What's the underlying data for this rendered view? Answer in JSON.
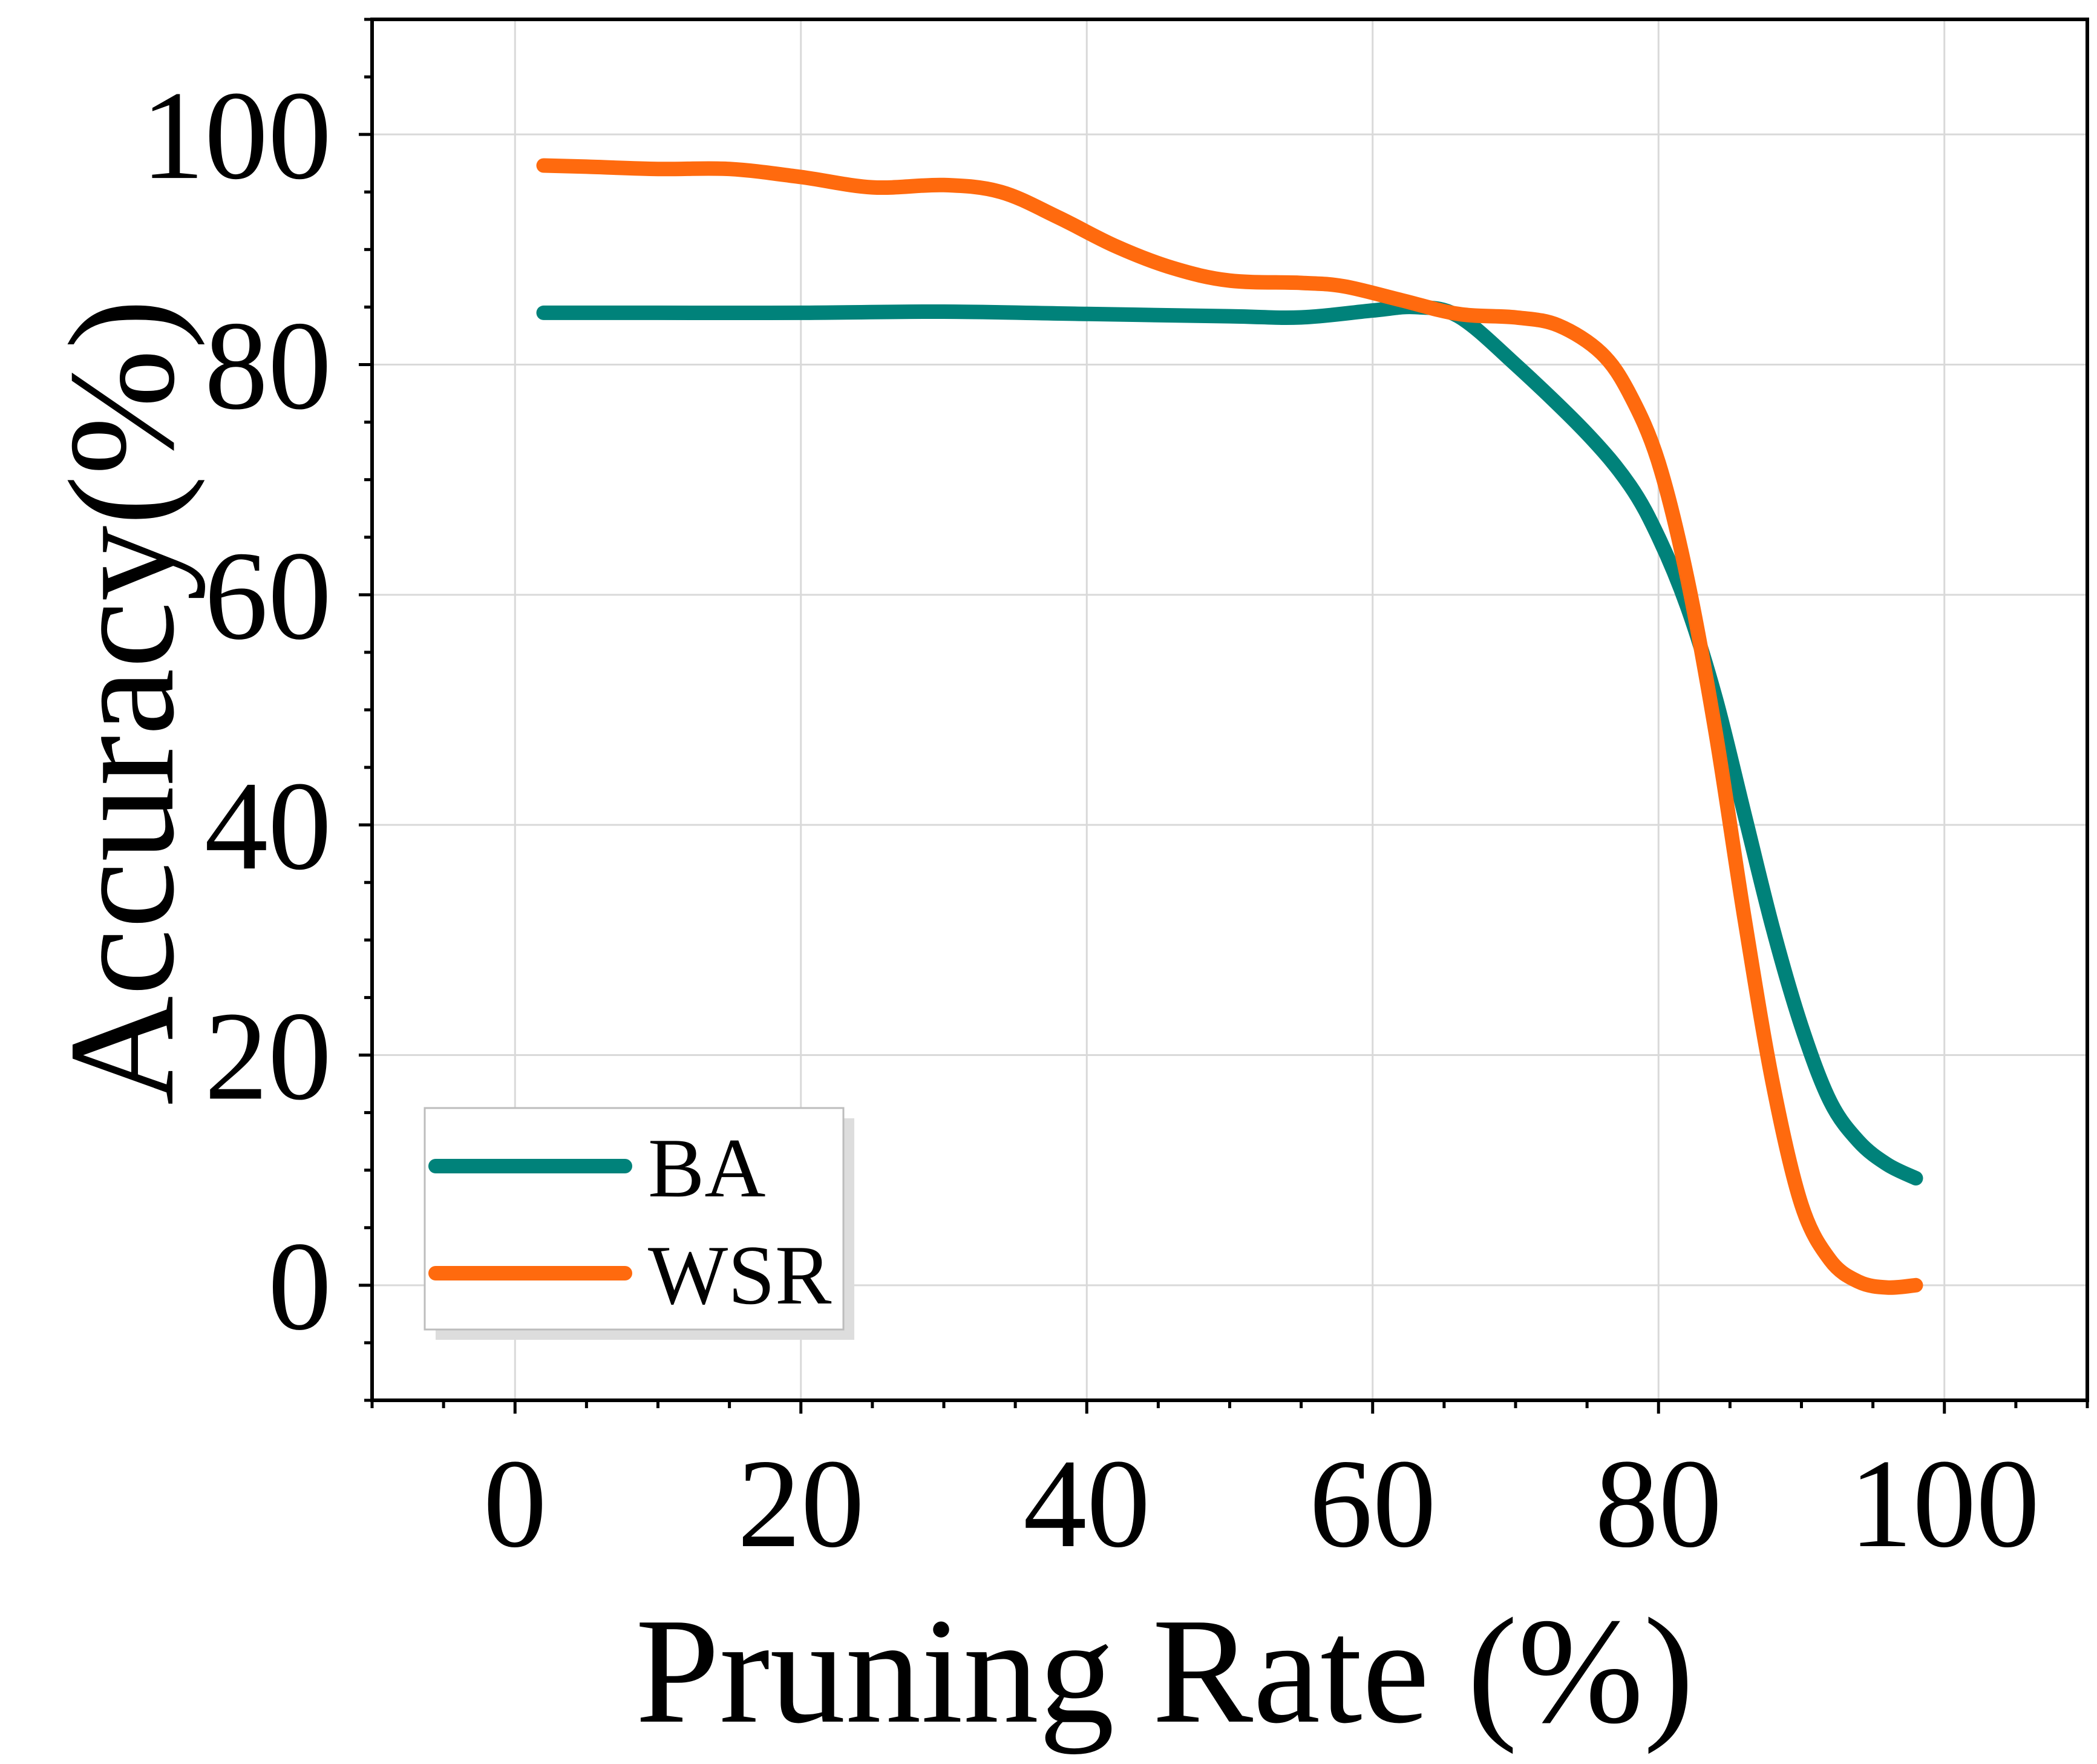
{
  "chart_data": {
    "type": "line",
    "xlabel": "Pruning Rate (%)",
    "ylabel": "Accuracy(%)",
    "xlim": [
      -10,
      110
    ],
    "ylim": [
      -10,
      110
    ],
    "x_ticks": [
      0,
      20,
      40,
      60,
      80,
      100
    ],
    "y_ticks": [
      0,
      20,
      40,
      60,
      80,
      100
    ],
    "grid": true,
    "legend_position": "bottom-left",
    "series": [
      {
        "name": "BA",
        "color": "#00827a",
        "x": [
          2,
          10,
          20,
          30,
          40,
          50,
          55,
          60,
          63,
          66,
          70,
          75,
          78,
          80,
          82,
          84,
          86,
          88,
          90,
          92,
          94,
          96,
          98
        ],
        "y": [
          84.5,
          84.5,
          84.5,
          84.6,
          84.4,
          84.2,
          84.1,
          84.7,
          85,
          84.2,
          80,
          74,
          69.5,
          65,
          59,
          51,
          41,
          31,
          22.5,
          16,
          12.5,
          10.5,
          9.3
        ]
      },
      {
        "name": "WSR",
        "color": "#ff6a0e",
        "x": [
          2,
          5,
          10,
          15,
          20,
          25,
          30,
          34,
          38,
          42,
          46,
          50,
          55,
          58,
          62,
          66,
          70,
          73,
          76,
          78,
          80,
          82,
          84,
          86,
          88,
          90,
          92,
          94,
          96,
          98
        ],
        "y": [
          97.3,
          97.2,
          97,
          97,
          96.3,
          95.4,
          95.6,
          95,
          92.8,
          90.3,
          88.4,
          87.3,
          87.1,
          86.8,
          85.6,
          84.4,
          84.1,
          83.4,
          81,
          77.4,
          71.5,
          61.5,
          48,
          32,
          17.5,
          7,
          2.2,
          0.3,
          -0.2,
          0
        ]
      }
    ]
  }
}
